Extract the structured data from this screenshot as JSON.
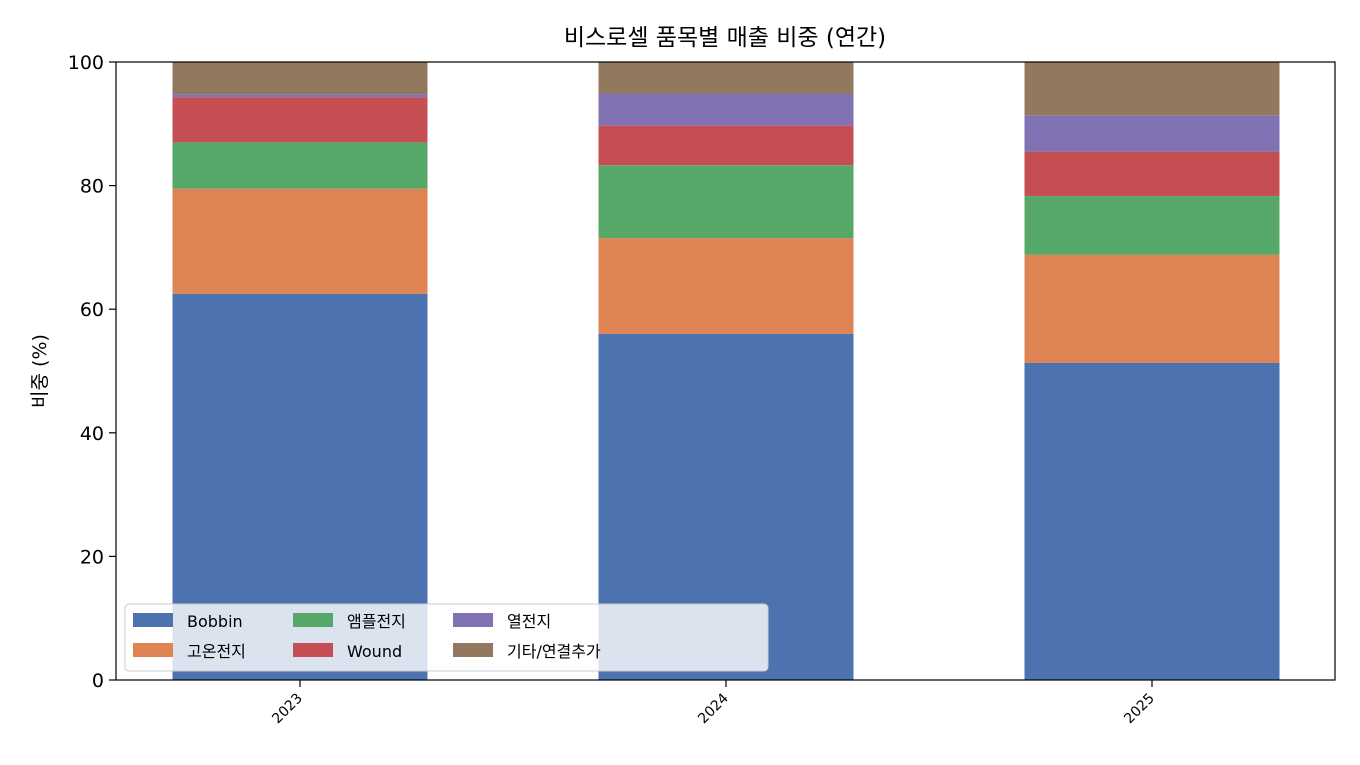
{
  "chart_data": {
    "type": "bar",
    "stacked": true,
    "title": "비스로셀 품목별 매출 비중 (연간)",
    "xlabel": "",
    "ylabel": "비중 (%)",
    "ylim": [
      0,
      100
    ],
    "yticks": [
      0,
      20,
      40,
      60,
      80,
      100
    ],
    "categories": [
      "2023",
      "2024",
      "2025"
    ],
    "grid": false,
    "legend_position": "lower-left",
    "series": [
      {
        "name": "Bobbin",
        "color": "#4c72b0",
        "values": [
          62.5,
          56.0,
          51.3
        ]
      },
      {
        "name": "고온전지",
        "color": "#dd8452",
        "values": [
          17.0,
          15.5,
          17.5
        ]
      },
      {
        "name": "앰플전지",
        "color": "#55a868",
        "values": [
          7.5,
          11.8,
          9.5
        ]
      },
      {
        "name": "Wound",
        "color": "#c44e52",
        "values": [
          7.3,
          6.4,
          7.2
        ]
      },
      {
        "name": "열전지",
        "color": "#8172b3",
        "values": [
          0.5,
          5.2,
          5.8
        ]
      },
      {
        "name": "기타/연결추가",
        "color": "#937860",
        "values": [
          5.2,
          5.1,
          8.7
        ]
      }
    ]
  }
}
